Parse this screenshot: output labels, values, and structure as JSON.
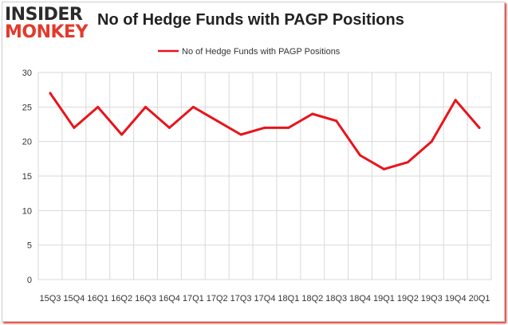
{
  "logo": {
    "line1": "INSIDER",
    "line2": "MONKEY"
  },
  "colors": {
    "series": "#e8141b",
    "grid": "#d9d9d9",
    "brand_red": "#e23a2c"
  },
  "chart_data": {
    "type": "line",
    "title": "No of Hedge Funds with PAGP Positions",
    "legend_position": "top-center",
    "grid": true,
    "ylim": [
      0,
      30
    ],
    "yticks": [
      0,
      5,
      10,
      15,
      20,
      25,
      30
    ],
    "x": [
      "15Q3",
      "15Q4",
      "16Q1",
      "16Q2",
      "16Q3",
      "16Q4",
      "17Q1",
      "17Q2",
      "17Q3",
      "17Q4",
      "18Q1",
      "18Q2",
      "18Q3",
      "18Q4",
      "19Q1",
      "19Q2",
      "19Q3",
      "19Q4",
      "20Q1"
    ],
    "series": [
      {
        "name": "No of Hedge Funds with PAGP Positions",
        "values": [
          27,
          22,
          25,
          21,
          25,
          22,
          25,
          23,
          21,
          22,
          22,
          24,
          23,
          18,
          16,
          17,
          20,
          26,
          22
        ]
      }
    ]
  }
}
